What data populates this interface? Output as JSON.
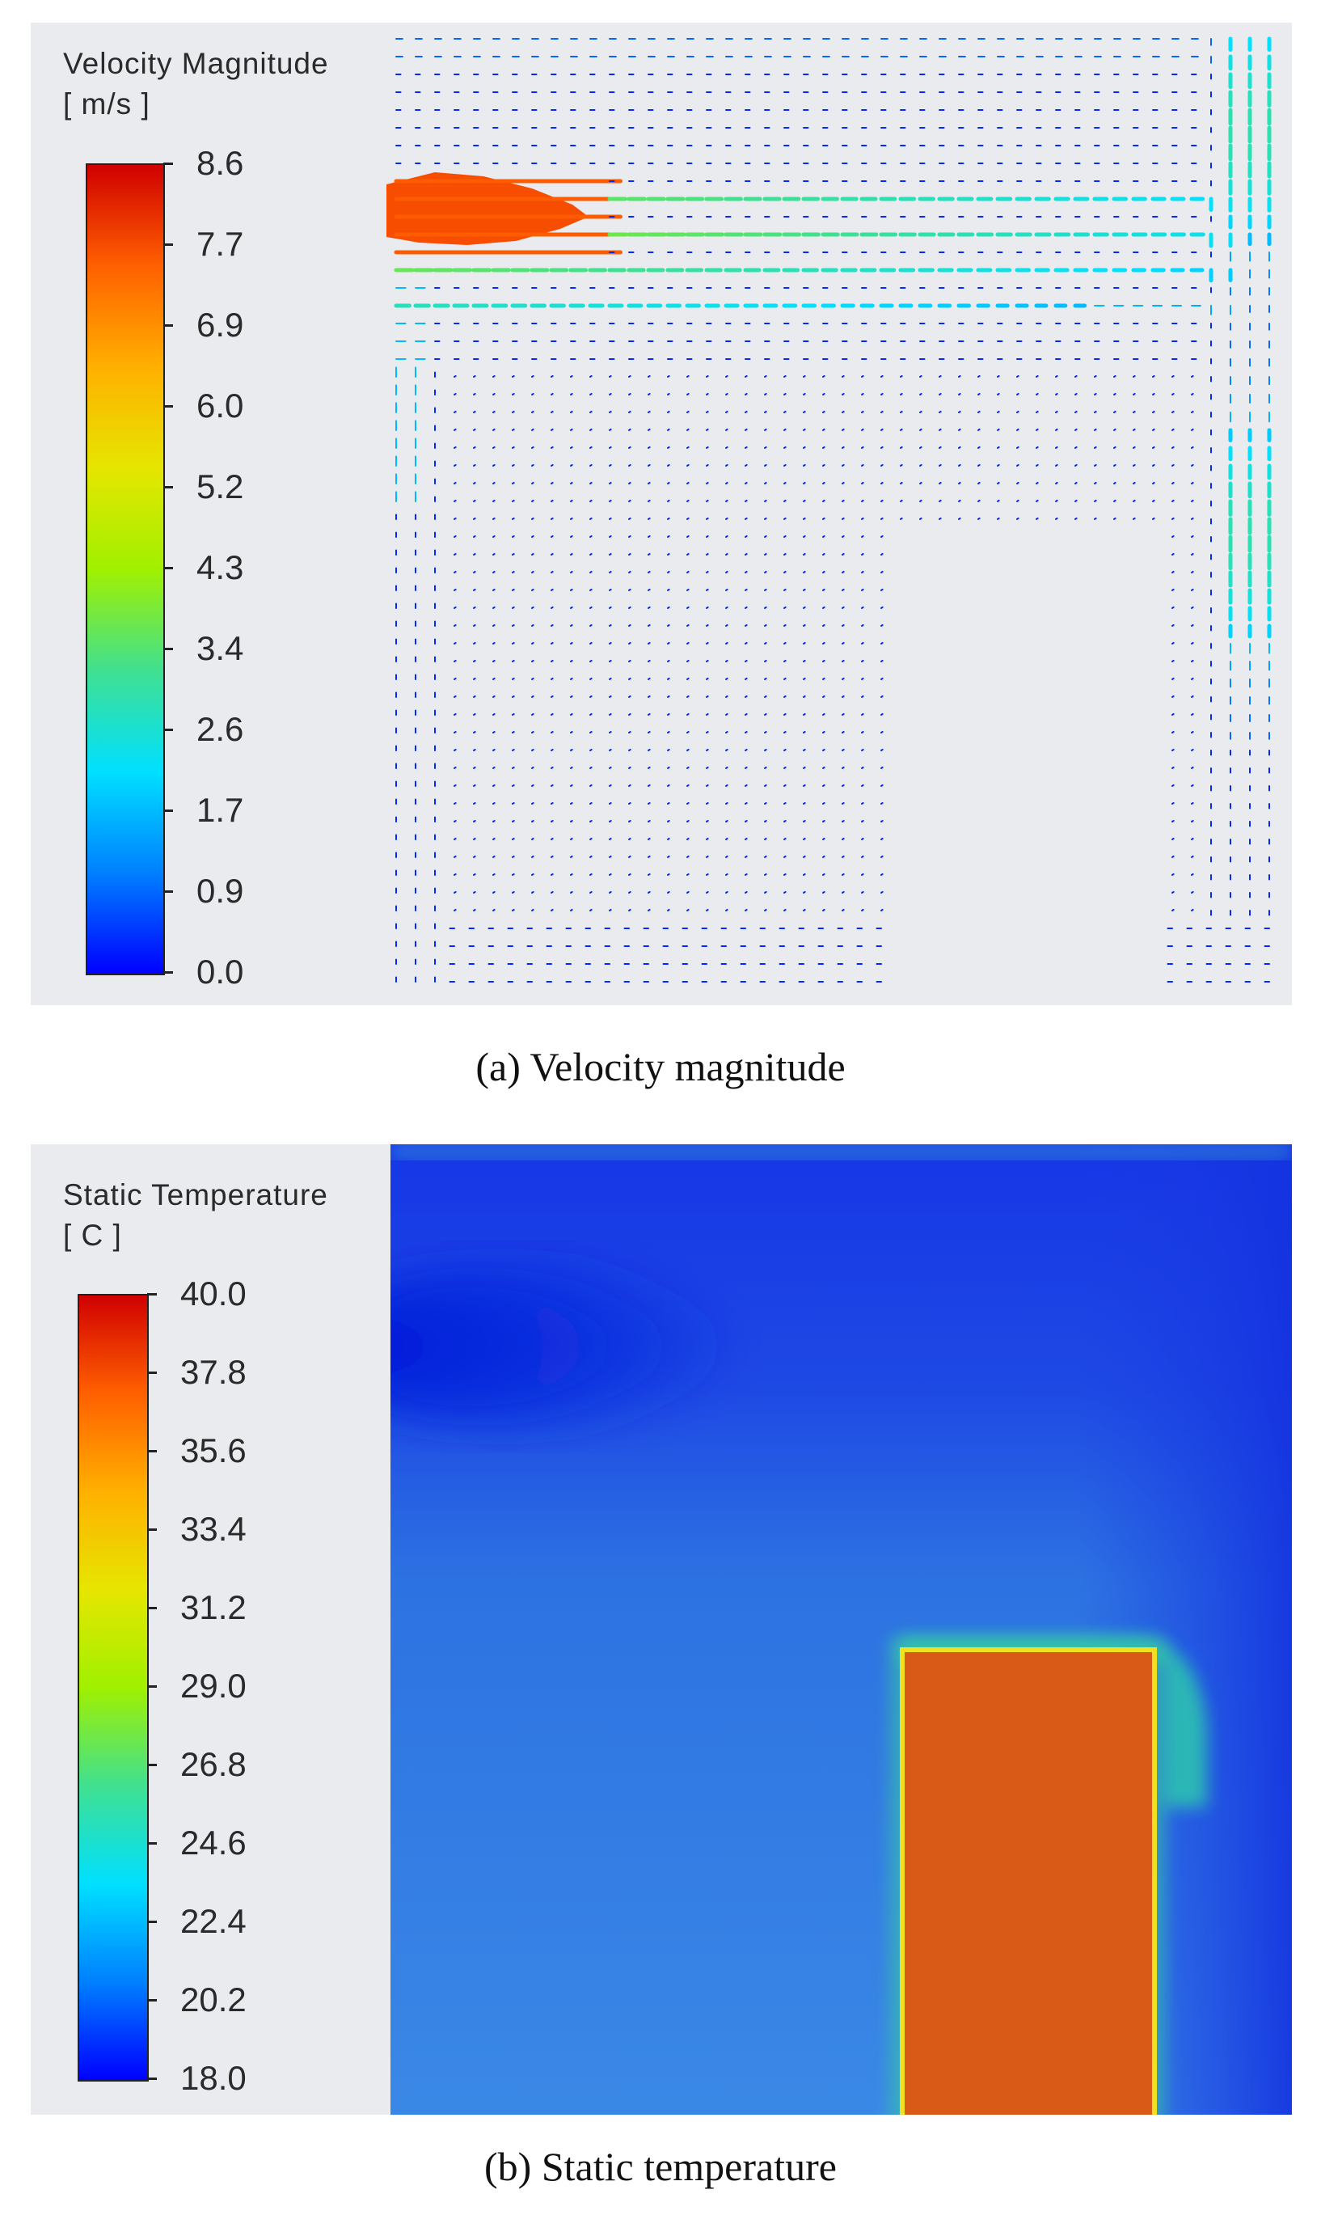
{
  "figure": {
    "panel_a": {
      "legend_title": "Velocity Magnitude",
      "legend_unit": "[ m/s ]",
      "legend_ticks": [
        "8.6",
        "7.7",
        "6.9",
        "6.0",
        "5.2",
        "4.3",
        "3.4",
        "2.6",
        "1.7",
        "0.9",
        "0.0"
      ],
      "caption": "(a) Velocity magnitude"
    },
    "panel_b": {
      "legend_title": "Static Temperature",
      "legend_unit": "[ C ]",
      "legend_ticks": [
        "40.0",
        "37.8",
        "35.6",
        "33.4",
        "31.2",
        "29.0",
        "26.8",
        "24.6",
        "22.4",
        "20.2",
        "18.0"
      ],
      "caption": "(b) Static temperature"
    }
  },
  "colors": {
    "colormap": [
      "#0000ff",
      "#0080ff",
      "#00e0ff",
      "#40e090",
      "#a0f000",
      "#e6e600",
      "#ffb000",
      "#ff6000",
      "#d00000"
    ],
    "panel_bg": "#e9ebef",
    "heat_source": "#d95a16"
  }
}
